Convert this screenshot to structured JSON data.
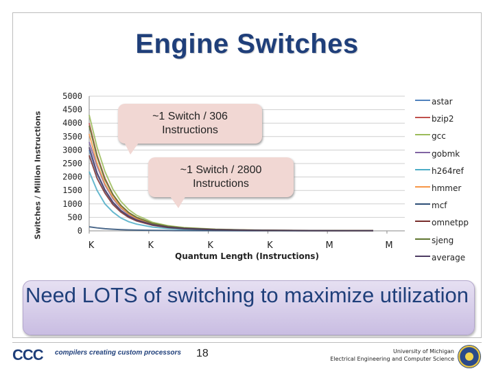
{
  "slide": {
    "title": "Engine Switches",
    "banner": "Need LOTS of switching to maximize utilization",
    "page_number": "18",
    "footer_logo_text": "CCC",
    "footer_tagline": "compilers creating custom processors",
    "footer_university_line1": "University of Michigan",
    "footer_university_line2": "Electrical Engineering and Computer Science"
  },
  "callouts": [
    {
      "text": "~1 Switch / 306 Instructions"
    },
    {
      "text": "~1 Switch / 2800 Instructions"
    }
  ],
  "chart_data": {
    "type": "line",
    "title": "",
    "xlabel": "Quantum Length (Instructions)",
    "ylabel": "Switches / Million Instructions",
    "ylim": [
      0,
      5000
    ],
    "yticks": [
      0,
      500,
      1000,
      1500,
      2000,
      2500,
      3000,
      3500,
      4000,
      4500,
      5000
    ],
    "categories": [
      "K",
      "K",
      "K",
      "K",
      "M",
      "M"
    ],
    "grid": true,
    "legend": "right",
    "x": [
      0,
      0.25,
      0.5,
      0.75,
      1,
      1.25,
      1.5,
      2,
      2.5,
      3,
      4,
      5,
      6,
      7,
      8,
      9
    ],
    "series": [
      {
        "name": "astar",
        "color": "#4f81bd",
        "values": [
          3000,
          2100,
          1500,
          1050,
          750,
          540,
          400,
          230,
          140,
          90,
          45,
          25,
          15,
          10,
          8,
          6
        ]
      },
      {
        "name": "bzip2",
        "color": "#c0504d",
        "values": [
          4000,
          2800,
          1950,
          1350,
          950,
          680,
          500,
          280,
          170,
          110,
          55,
          30,
          18,
          12,
          9,
          7
        ]
      },
      {
        "name": "gcc",
        "color": "#9bbb59",
        "values": [
          4300,
          3100,
          2200,
          1550,
          1100,
          790,
          580,
          320,
          190,
          120,
          60,
          33,
          20,
          13,
          10,
          8
        ]
      },
      {
        "name": "gobmk",
        "color": "#8064a2",
        "values": [
          3300,
          2400,
          1700,
          1200,
          850,
          610,
          450,
          250,
          150,
          95,
          48,
          27,
          16,
          11,
          8,
          6
        ]
      },
      {
        "name": "h264ref",
        "color": "#4bacc6",
        "values": [
          2200,
          1500,
          1000,
          700,
          480,
          340,
          250,
          140,
          85,
          55,
          28,
          16,
          10,
          7,
          5,
          4
        ]
      },
      {
        "name": "hmmer",
        "color": "#f79646",
        "values": [
          3600,
          2500,
          1750,
          1250,
          880,
          630,
          460,
          260,
          155,
          100,
          50,
          28,
          17,
          11,
          8,
          6
        ]
      },
      {
        "name": "mcf",
        "color": "#2c4d75",
        "values": [
          150,
          110,
          80,
          60,
          45,
          35,
          28,
          18,
          12,
          8,
          5,
          3,
          2,
          1.5,
          1,
          1
        ]
      },
      {
        "name": "omnetpp",
        "color": "#772c2a",
        "values": [
          2800,
          1950,
          1400,
          980,
          700,
          500,
          370,
          210,
          125,
          80,
          40,
          22,
          13,
          9,
          6,
          5
        ]
      },
      {
        "name": "sjeng",
        "color": "#5f7530",
        "values": [
          3900,
          2750,
          1900,
          1350,
          950,
          680,
          500,
          280,
          165,
          105,
          52,
          29,
          17,
          11,
          8,
          6
        ]
      },
      {
        "name": "average",
        "color": "#4d3b62",
        "values": [
          3100,
          2150,
          1520,
          1070,
          760,
          550,
          405,
          230,
          138,
          88,
          44,
          24,
          15,
          10,
          7,
          5
        ]
      }
    ]
  }
}
